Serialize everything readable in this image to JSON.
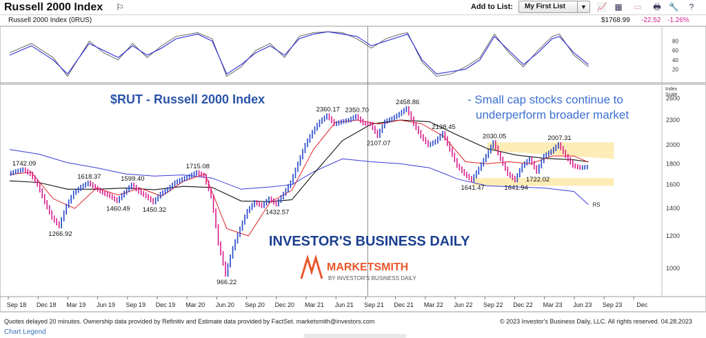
{
  "header": {
    "title": "Russell 2000 Index",
    "flag_icon": "flag-icon",
    "add_to_list_label": "Add to List:",
    "list_value": "My First List",
    "tool_icons": [
      "line-chart-icon",
      "table-icon",
      "disabled-chart-icon",
      "print-icon",
      "tools-icon",
      "help-icon"
    ]
  },
  "quote": {
    "name": "Russell 2000 Index  (0RUS)",
    "price": "$1768.99",
    "change": "-22.52",
    "change_pct": "-1.26%",
    "neg_color": "#d0208a"
  },
  "annotations": {
    "chart_title": "$RUT - Russell 2000 Index",
    "note_line1": "- Small cap stocks continue to",
    "note_line2": "underperform broader market",
    "rs_label": "RS",
    "ibd_logo": "INVESTOR'S BUSINESS DAILY",
    "ms_logo": "MARKETSMITH",
    "ms_sub": "BY INVESTOR'S BUSINESS DAILY"
  },
  "axis_right": {
    "index_label_1": "Index",
    "index_label_2": "Scale",
    "osc_ticks": [
      "80",
      "60",
      "40",
      "20"
    ]
  },
  "footer": {
    "left": "Quotes delayed 20 minutes. Ownership data provided by Refinitiv and Estimate data provided by FactSet. marketsmith@investors.com",
    "right": "© 2023 Investor's Business Daily, LLC. All rights reserved.     04.28.2023",
    "legend_link": "Chart Legend"
  },
  "chart_data": {
    "type": "line",
    "colors": {
      "price_up": "#2244cc",
      "price_down": "#d81b8a",
      "ma_short": "#e02020",
      "ma_long": "#111111",
      "rs": "#3a3ad8",
      "osc_fast": "#3a3ad8",
      "osc_slow": "#666666",
      "band": "#fde9a8"
    },
    "x_ticks": [
      "Sep 18",
      "Dec 18",
      "Mar 19",
      "Jun 19",
      "Sep 19",
      "Dec 19",
      "Mar 20",
      "Jun 20",
      "Sep 20",
      "Dec 20",
      "Mar 21",
      "Jun 21",
      "Sep 21",
      "Dec 21",
      "Mar 22",
      "Jun 22",
      "Sep 22",
      "Dec 22",
      "Mar 23",
      "Jun 23",
      "Sep 23",
      "Dec"
    ],
    "y_scale": "log",
    "ylim": [
      880,
      2750
    ],
    "y_ticks": [
      2600,
      2300,
      2000,
      1800,
      1600,
      1400,
      1200,
      1000
    ],
    "price": [
      [
        0,
        1700
      ],
      [
        1,
        1725
      ],
      [
        2,
        1742.09
      ],
      [
        3,
        1700
      ],
      [
        4,
        1600
      ],
      [
        5,
        1450
      ],
      [
        6,
        1330
      ],
      [
        7,
        1266.92
      ],
      [
        8,
        1420
      ],
      [
        9,
        1530
      ],
      [
        10,
        1580
      ],
      [
        11,
        1618.37
      ],
      [
        12,
        1570
      ],
      [
        13,
        1530
      ],
      [
        14,
        1500
      ],
      [
        15,
        1460.49
      ],
      [
        16,
        1530
      ],
      [
        17,
        1599.4
      ],
      [
        18,
        1540
      ],
      [
        19,
        1500
      ],
      [
        20,
        1450.32
      ],
      [
        21,
        1520
      ],
      [
        22,
        1560
      ],
      [
        23,
        1620
      ],
      [
        24,
        1650
      ],
      [
        25,
        1680
      ],
      [
        26,
        1715.08
      ],
      [
        27,
        1680
      ],
      [
        28,
        1500
      ],
      [
        29,
        1150
      ],
      [
        30,
        966.22
      ],
      [
        31,
        1120
      ],
      [
        32,
        1250
      ],
      [
        33,
        1380
      ],
      [
        34,
        1450
      ],
      [
        35,
        1420
      ],
      [
        36,
        1480
      ],
      [
        37,
        1432.57
      ],
      [
        38,
        1520
      ],
      [
        39,
        1620
      ],
      [
        40,
        1800
      ],
      [
        41,
        2000
      ],
      [
        42,
        2150
      ],
      [
        43,
        2280
      ],
      [
        44,
        2360.17
      ],
      [
        45,
        2250
      ],
      [
        46,
        2280
      ],
      [
        47,
        2300
      ],
      [
        48,
        2350.7
      ],
      [
        49,
        2260
      ],
      [
        50,
        2250
      ],
      [
        51,
        2107.07
      ],
      [
        52,
        2280
      ],
      [
        53,
        2320
      ],
      [
        54,
        2380
      ],
      [
        55,
        2458.86
      ],
      [
        56,
        2250
      ],
      [
        57,
        2100
      ],
      [
        58,
        2000
      ],
      [
        59,
        2040
      ],
      [
        60,
        2138.45
      ],
      [
        61,
        1950
      ],
      [
        62,
        1780
      ],
      [
        63,
        1700
      ],
      [
        64,
        1641.47
      ],
      [
        65,
        1750
      ],
      [
        66,
        1880
      ],
      [
        67,
        2030.05
      ],
      [
        68,
        1850
      ],
      [
        69,
        1700
      ],
      [
        70,
        1641.94
      ],
      [
        71,
        1780
      ],
      [
        72,
        1850
      ],
      [
        73,
        1722.02
      ],
      [
        74,
        1880
      ],
      [
        75,
        1930
      ],
      [
        76,
        2007.31
      ],
      [
        77,
        1880
      ],
      [
        78,
        1780
      ],
      [
        79,
        1760
      ],
      [
        80,
        1768.99
      ]
    ],
    "ma_short": [
      [
        0,
        1695
      ],
      [
        3,
        1715
      ],
      [
        6,
        1480
      ],
      [
        9,
        1400
      ],
      [
        12,
        1570
      ],
      [
        15,
        1510
      ],
      [
        18,
        1570
      ],
      [
        21,
        1500
      ],
      [
        24,
        1630
      ],
      [
        27,
        1700
      ],
      [
        30,
        1250
      ],
      [
        33,
        1200
      ],
      [
        36,
        1450
      ],
      [
        39,
        1550
      ],
      [
        42,
        1950
      ],
      [
        45,
        2270
      ],
      [
        48,
        2300
      ],
      [
        51,
        2250
      ],
      [
        54,
        2300
      ],
      [
        57,
        2250
      ],
      [
        60,
        2100
      ],
      [
        63,
        1820
      ],
      [
        66,
        1800
      ],
      [
        69,
        1820
      ],
      [
        72,
        1800
      ],
      [
        75,
        1880
      ],
      [
        78,
        1880
      ],
      [
        80,
        1815
      ]
    ],
    "ma_long": [
      [
        0,
        1635
      ],
      [
        4,
        1620
      ],
      [
        8,
        1560
      ],
      [
        12,
        1560
      ],
      [
        16,
        1570
      ],
      [
        20,
        1555
      ],
      [
        24,
        1585
      ],
      [
        28,
        1575
      ],
      [
        32,
        1460
      ],
      [
        36,
        1455
      ],
      [
        39,
        1470
      ],
      [
        42,
        1700
      ],
      [
        46,
        2050
      ],
      [
        50,
        2250
      ],
      [
        54,
        2300
      ],
      [
        58,
        2280
      ],
      [
        62,
        2110
      ],
      [
        66,
        1960
      ],
      [
        70,
        1890
      ],
      [
        74,
        1855
      ],
      [
        78,
        1840
      ],
      [
        80,
        1820
      ]
    ],
    "rs": [
      [
        0,
        1950
      ],
      [
        4,
        1900
      ],
      [
        8,
        1810
      ],
      [
        12,
        1760
      ],
      [
        16,
        1700
      ],
      [
        20,
        1680
      ],
      [
        24,
        1690
      ],
      [
        28,
        1660
      ],
      [
        32,
        1560
      ],
      [
        36,
        1580
      ],
      [
        39,
        1600
      ],
      [
        42,
        1720
      ],
      [
        46,
        1850
      ],
      [
        50,
        1820
      ],
      [
        54,
        1800
      ],
      [
        58,
        1760
      ],
      [
        62,
        1650
      ],
      [
        66,
        1590
      ],
      [
        70,
        1580
      ],
      [
        74,
        1570
      ],
      [
        78,
        1540
      ],
      [
        80,
        1430
      ]
    ],
    "osc_ylim": [
      0,
      100
    ],
    "osc_fast": [
      [
        0,
        50
      ],
      [
        3,
        70
      ],
      [
        6,
        40
      ],
      [
        8,
        10
      ],
      [
        11,
        75
      ],
      [
        13,
        60
      ],
      [
        15,
        45
      ],
      [
        17,
        70
      ],
      [
        19,
        50
      ],
      [
        21,
        65
      ],
      [
        23,
        85
      ],
      [
        26,
        95
      ],
      [
        28,
        80
      ],
      [
        30,
        10
      ],
      [
        32,
        30
      ],
      [
        34,
        55
      ],
      [
        36,
        70
      ],
      [
        38,
        50
      ],
      [
        40,
        85
      ],
      [
        42,
        95
      ],
      [
        44,
        100
      ],
      [
        46,
        95
      ],
      [
        48,
        90
      ],
      [
        50,
        70
      ],
      [
        52,
        80
      ],
      [
        54,
        90
      ],
      [
        55,
        95
      ],
      [
        57,
        40
      ],
      [
        59,
        10
      ],
      [
        61,
        15
      ],
      [
        63,
        20
      ],
      [
        65,
        40
      ],
      [
        67,
        90
      ],
      [
        69,
        60
      ],
      [
        71,
        30
      ],
      [
        73,
        55
      ],
      [
        75,
        85
      ],
      [
        76,
        90
      ],
      [
        78,
        55
      ],
      [
        80,
        30
      ]
    ],
    "osc_slow": [
      [
        0,
        55
      ],
      [
        3,
        75
      ],
      [
        6,
        45
      ],
      [
        8,
        5
      ],
      [
        11,
        80
      ],
      [
        13,
        55
      ],
      [
        15,
        40
      ],
      [
        17,
        75
      ],
      [
        19,
        45
      ],
      [
        21,
        70
      ],
      [
        23,
        90
      ],
      [
        26,
        98
      ],
      [
        28,
        85
      ],
      [
        30,
        5
      ],
      [
        32,
        25
      ],
      [
        34,
        60
      ],
      [
        36,
        75
      ],
      [
        38,
        45
      ],
      [
        40,
        90
      ],
      [
        42,
        98
      ],
      [
        44,
        100
      ],
      [
        46,
        98
      ],
      [
        48,
        85
      ],
      [
        50,
        65
      ],
      [
        52,
        85
      ],
      [
        54,
        95
      ],
      [
        55,
        98
      ],
      [
        57,
        35
      ],
      [
        59,
        5
      ],
      [
        61,
        10
      ],
      [
        63,
        25
      ],
      [
        65,
        45
      ],
      [
        67,
        95
      ],
      [
        69,
        55
      ],
      [
        71,
        25
      ],
      [
        73,
        60
      ],
      [
        75,
        90
      ],
      [
        76,
        95
      ],
      [
        78,
        50
      ],
      [
        80,
        25
      ]
    ],
    "price_labels": [
      {
        "i": 2,
        "v": 1742.09,
        "pos": "above"
      },
      {
        "i": 7,
        "v": 1266.92,
        "pos": "below"
      },
      {
        "i": 11,
        "v": 1618.37,
        "pos": "above"
      },
      {
        "i": 15,
        "v": 1460.49,
        "pos": "below"
      },
      {
        "i": 17,
        "v": 1599.4,
        "pos": "above"
      },
      {
        "i": 20,
        "v": 1450.32,
        "pos": "below"
      },
      {
        "i": 26,
        "v": 1715.08,
        "pos": "above"
      },
      {
        "i": 30,
        "v": 966.22,
        "pos": "below"
      },
      {
        "i": 37,
        "v": 1432.57,
        "pos": "below"
      },
      {
        "i": 44,
        "v": 2360.17,
        "pos": "above"
      },
      {
        "i": 48,
        "v": 2350.7,
        "pos": "above"
      },
      {
        "i": 51,
        "v": 2107.07,
        "pos": "below"
      },
      {
        "i": 55,
        "v": 2458.86,
        "pos": "above"
      },
      {
        "i": 60,
        "v": 2138.45,
        "pos": "above"
      },
      {
        "i": 64,
        "v": 1641.47,
        "pos": "below"
      },
      {
        "i": 67,
        "v": 2030.05,
        "pos": "above"
      },
      {
        "i": 70,
        "v": 1641.94,
        "pos": "below"
      },
      {
        "i": 73,
        "v": 1722.02,
        "pos": "below"
      },
      {
        "i": 76,
        "v": 2007.31,
        "pos": "above"
      }
    ],
    "bands": [
      {
        "i0": 66,
        "i1": 83.5,
        "y0a": 2030,
        "y1a": 2030,
        "y0b": 1940,
        "y1b": 1850
      },
      {
        "i0": 64,
        "i1": 83.5,
        "y0a": 1660,
        "y1a": 1660,
        "y0b": 1590,
        "y1b": 1590
      }
    ],
    "n_points": 81
  }
}
